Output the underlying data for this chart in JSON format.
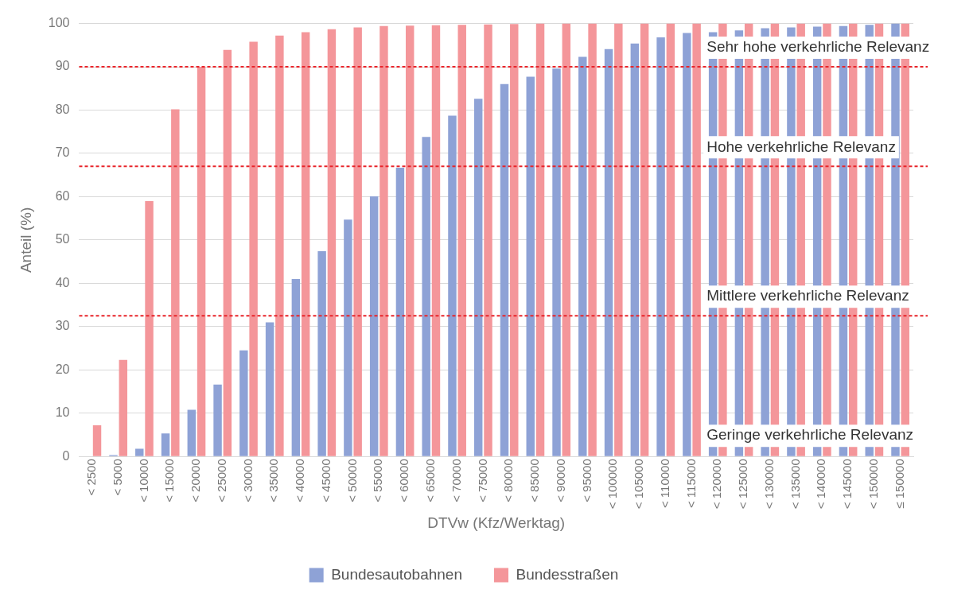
{
  "chart_data": {
    "type": "bar",
    "xlabel": "DTVw (Kfz/Werktag)",
    "ylabel": "Anteil (%)",
    "categories": [
      "< 2500",
      "< 5000",
      "< 10000",
      "< 15000",
      "< 20000",
      "< 25000",
      "< 30000",
      "< 35000",
      "< 40000",
      "< 45000",
      "< 50000",
      "< 55000",
      "< 60000",
      "< 65000",
      "< 70000",
      "< 75000",
      "< 80000",
      "< 85000",
      "< 90000",
      "< 95000",
      "< 100000",
      "< 105000",
      "< 110000",
      "< 115000",
      "< 120000",
      "< 125000",
      "< 130000",
      "< 135000",
      "< 140000",
      "< 145000",
      "< 150000",
      "≤ 150000"
    ],
    "series": [
      {
        "name": "Bundesautobahnen",
        "color": "#8ea2d6",
        "values": [
          0,
          0.3,
          1.8,
          5.3,
          10.8,
          16.6,
          24.5,
          31,
          41,
          47.4,
          54.7,
          60.1,
          66.7,
          73.8,
          78.7,
          82.6,
          86,
          87.7,
          89.6,
          92.3,
          94.1,
          95.4,
          96.8,
          97.8,
          98,
          98.4,
          98.9,
          99.1,
          99.3,
          99.4,
          99.7,
          100
        ]
      },
      {
        "name": "Bundesstraßen",
        "color": "#f4969a",
        "values": [
          7.2,
          22.3,
          59,
          80.2,
          90,
          93.9,
          95.8,
          97.2,
          98,
          98.7,
          99.1,
          99.4,
          99.5,
          99.6,
          99.7,
          99.8,
          99.9,
          100,
          100,
          100,
          100,
          100,
          100,
          100,
          100,
          100,
          100,
          100,
          100,
          100,
          100,
          100
        ]
      }
    ],
    "ylim": [
      0,
      100
    ],
    "yticks": [
      0,
      10,
      20,
      30,
      40,
      50,
      60,
      70,
      80,
      90,
      100
    ],
    "grid": "y",
    "legend": "bottom",
    "ref_lines": [
      {
        "axis": "y",
        "value": 90,
        "label": "Sehr hohe verkehrliche Relevanz",
        "color": "#e8242a",
        "line_style": "dashed"
      },
      {
        "axis": "y",
        "value": 67,
        "label": "Hohe verkehrliche Relevanz",
        "color": "#e8242a",
        "line_style": "dashed"
      },
      {
        "axis": "y",
        "value": 32.5,
        "label": "Mittlere verkehrliche Relevanz",
        "color": "#e8242a",
        "line_style": "dashed"
      }
    ],
    "annotations": [
      "Geringe verkehrliche Relevanz"
    ]
  }
}
